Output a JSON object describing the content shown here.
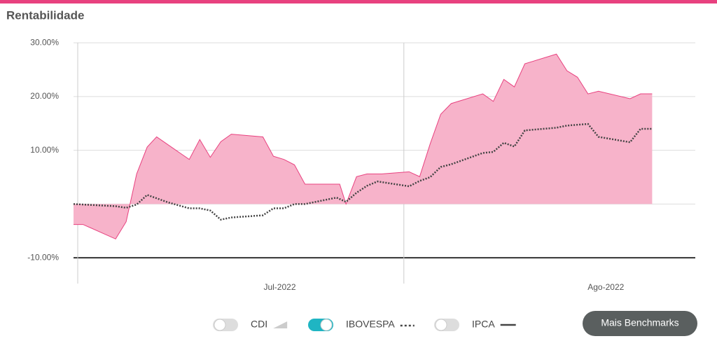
{
  "chart_data": {
    "type": "area",
    "title": "Rentabilidade",
    "xlim": [
      -0.4,
      58.7
    ],
    "xticks": [
      {
        "value": 19.2,
        "label": "Jul-2022"
      },
      {
        "value": 50.2,
        "label": "Ago-2022"
      }
    ],
    "xgrid": [
      0,
      31
    ],
    "ylim": [
      -14.8,
      30.8
    ],
    "yticks": [
      {
        "value": -10,
        "label": "-10.00%"
      },
      {
        "value": 10,
        "label": "10.00%"
      },
      {
        "value": 20,
        "label": "20.00%"
      },
      {
        "value": 30,
        "label": "30.00%"
      }
    ],
    "grid": true,
    "series": [
      {
        "style": "area",
        "color": "#e8417f",
        "fill": "#f7b3ca",
        "x": [
          -0.4,
          0.5,
          3.6,
          4.6,
          5.6,
          6.6,
          7.5,
          10.6,
          11.6,
          12.6,
          13.6,
          14.6,
          17.6,
          18.6,
          19.6,
          20.6,
          21.6,
          24.9,
          25.5,
          26.5,
          27.5,
          28.9,
          31.5,
          32.5,
          33.5,
          34.5,
          35.5,
          38.5,
          39.5,
          40.5,
          41.5,
          42.5,
          45.5,
          46.5,
          47.5,
          48.5,
          49.5,
          52.5,
          53.5,
          54.6
        ],
        "values": [
          -3.8,
          -3.8,
          -6.5,
          -3.3,
          5.6,
          10.6,
          12.5,
          8.3,
          12.0,
          8.7,
          11.6,
          13.0,
          12.5,
          8.9,
          8.3,
          7.3,
          3.7,
          3.7,
          0,
          5.1,
          5.6,
          5.6,
          6.0,
          5.1,
          11.2,
          16.7,
          18.7,
          20.5,
          19.1,
          23.2,
          21.8,
          26.1,
          27.9,
          24.8,
          23.6,
          20.5,
          21.0,
          19.6,
          20.5,
          20.5
        ]
      },
      {
        "style": "dotted",
        "name": "IBOVESPA",
        "color": "#444444",
        "x": [
          -0.4,
          3.6,
          4.6,
          5.6,
          6.6,
          7.6,
          8.6,
          10.6,
          11.6,
          12.6,
          13.6,
          14.6,
          17.6,
          18.6,
          19.6,
          20.6,
          21.6,
          24.6,
          25.5,
          26.5,
          27.5,
          28.5,
          31.5,
          32.5,
          33.5,
          34.5,
          35.5,
          38.5,
          39.5,
          40.5,
          41.5,
          42.5,
          45.5,
          46.5,
          48.5,
          49.5,
          52.5,
          53.5,
          54.6
        ],
        "values": [
          0,
          -0.4,
          -0.7,
          -0.1,
          1.7,
          1.0,
          0.3,
          -0.8,
          -0.8,
          -1.2,
          -2.9,
          -2.5,
          -2.1,
          -0.8,
          -0.8,
          0,
          0,
          1.2,
          0.4,
          2.1,
          3.4,
          4.2,
          3.3,
          4.3,
          5.0,
          6.9,
          7.4,
          9.5,
          9.7,
          11.4,
          10.7,
          13.7,
          14.2,
          14.6,
          14.9,
          12.5,
          11.5,
          14.0,
          14.0
        ]
      }
    ],
    "benchmarks": [
      {
        "name": "CDI",
        "on": false,
        "icon": "area"
      },
      {
        "name": "IBOVESPA",
        "on": true,
        "icon": "dotted"
      },
      {
        "name": "IPCA",
        "on": false,
        "icon": "line"
      }
    ],
    "button": "Mais Benchmarks"
  }
}
